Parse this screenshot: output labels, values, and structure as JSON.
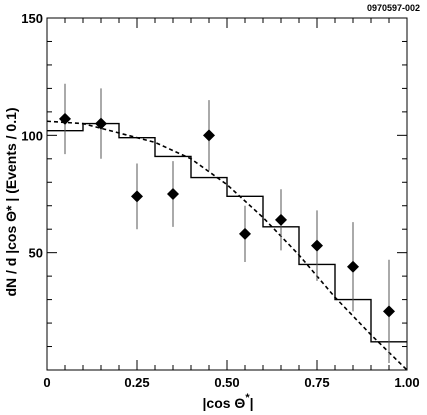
{
  "figure_id": "0970597-002",
  "chart_data": {
    "type": "scatter",
    "title": "",
    "xlabel_main": "|cos Θ",
    "xlabel_sup": "*",
    "xlabel_end": "|",
    "ylabel": "dN / d |cos Θ* | (Events / 0.1)",
    "xlim": [
      0,
      1
    ],
    "ylim": [
      0,
      150
    ],
    "x_ticks": [
      0,
      0.25,
      0.5,
      0.75,
      1.0
    ],
    "x_tick_labels": [
      "0",
      "0.25",
      "0.50",
      "0.75",
      "1.00"
    ],
    "y_ticks": [
      50,
      100,
      150
    ],
    "y_tick_labels": [
      "50",
      "100",
      "150"
    ],
    "grid": false,
    "series": [
      {
        "kind": "points_with_errors",
        "marker": "diamond",
        "x": [
          0.05,
          0.15,
          0.25,
          0.35,
          0.45,
          0.55,
          0.65,
          0.75,
          0.85,
          0.95
        ],
        "y": [
          107,
          105,
          74,
          75,
          100,
          58,
          64,
          53,
          44,
          25
        ],
        "err": [
          15,
          15,
          14,
          14,
          15,
          12,
          13,
          15,
          19,
          22
        ]
      },
      {
        "kind": "histogram",
        "style": "solid",
        "bin_edges": [
          0.0,
          0.1,
          0.2,
          0.3,
          0.4,
          0.5,
          0.6,
          0.7,
          0.8,
          0.9,
          1.0
        ],
        "values": [
          102,
          105,
          99,
          91,
          82,
          74,
          61,
          45,
          30,
          12
        ]
      },
      {
        "kind": "curve",
        "style": "dashed",
        "x": [
          0.0,
          0.1,
          0.2,
          0.3,
          0.4,
          0.5,
          0.6,
          0.7,
          0.8,
          0.9,
          1.0
        ],
        "y": [
          106,
          105,
          101,
          97,
          90,
          79,
          65,
          49,
          31,
          15,
          0
        ]
      }
    ]
  }
}
